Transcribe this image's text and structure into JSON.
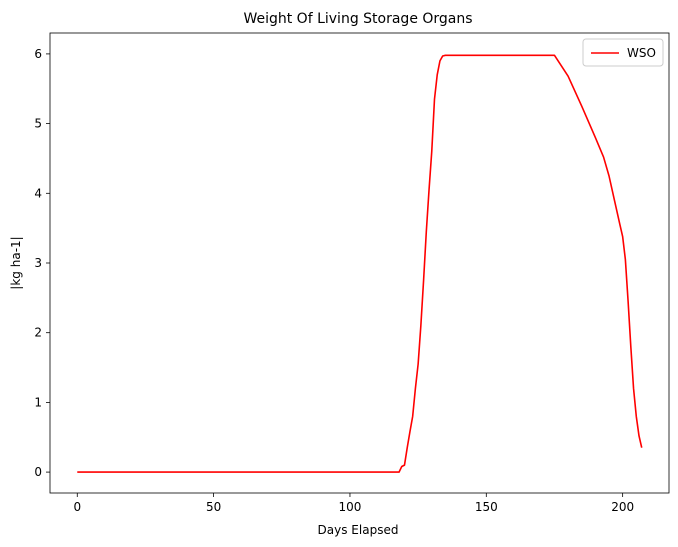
{
  "chart_data": {
    "type": "line",
    "title": "Weight Of Living Storage Organs",
    "xlabel": "Days Elapsed",
    "ylabel": "|kg ha-1|",
    "xlim": [
      -10,
      217
    ],
    "ylim": [
      -0.3,
      6.3
    ],
    "xticks": [
      0,
      50,
      100,
      150,
      200
    ],
    "yticks": [
      0,
      1,
      2,
      3,
      4,
      5,
      6
    ],
    "grid": false,
    "legend": "top-right",
    "series": [
      {
        "name": "WSO",
        "color": "#ff0000",
        "x": [
          0,
          50,
          100,
          118,
          119,
          120,
          121,
          122,
          123,
          124,
          125,
          126,
          127,
          128,
          129,
          130,
          131,
          132,
          133,
          134,
          135,
          136,
          137,
          140,
          150,
          160,
          170,
          175,
          178,
          180,
          185,
          190,
          193,
          195,
          197,
          199,
          200,
          201,
          202,
          203,
          204,
          205,
          206,
          207
        ],
        "y": [
          0,
          0,
          0,
          0,
          0.08,
          0.1,
          0.35,
          0.58,
          0.8,
          1.2,
          1.55,
          2.1,
          2.75,
          3.45,
          4.05,
          4.6,
          5.35,
          5.7,
          5.9,
          5.97,
          5.98,
          5.98,
          5.98,
          5.98,
          5.98,
          5.98,
          5.98,
          5.98,
          5.8,
          5.68,
          5.25,
          4.8,
          4.52,
          4.25,
          3.9,
          3.55,
          3.38,
          3.05,
          2.45,
          1.8,
          1.2,
          0.8,
          0.52,
          0.35
        ]
      }
    ]
  }
}
